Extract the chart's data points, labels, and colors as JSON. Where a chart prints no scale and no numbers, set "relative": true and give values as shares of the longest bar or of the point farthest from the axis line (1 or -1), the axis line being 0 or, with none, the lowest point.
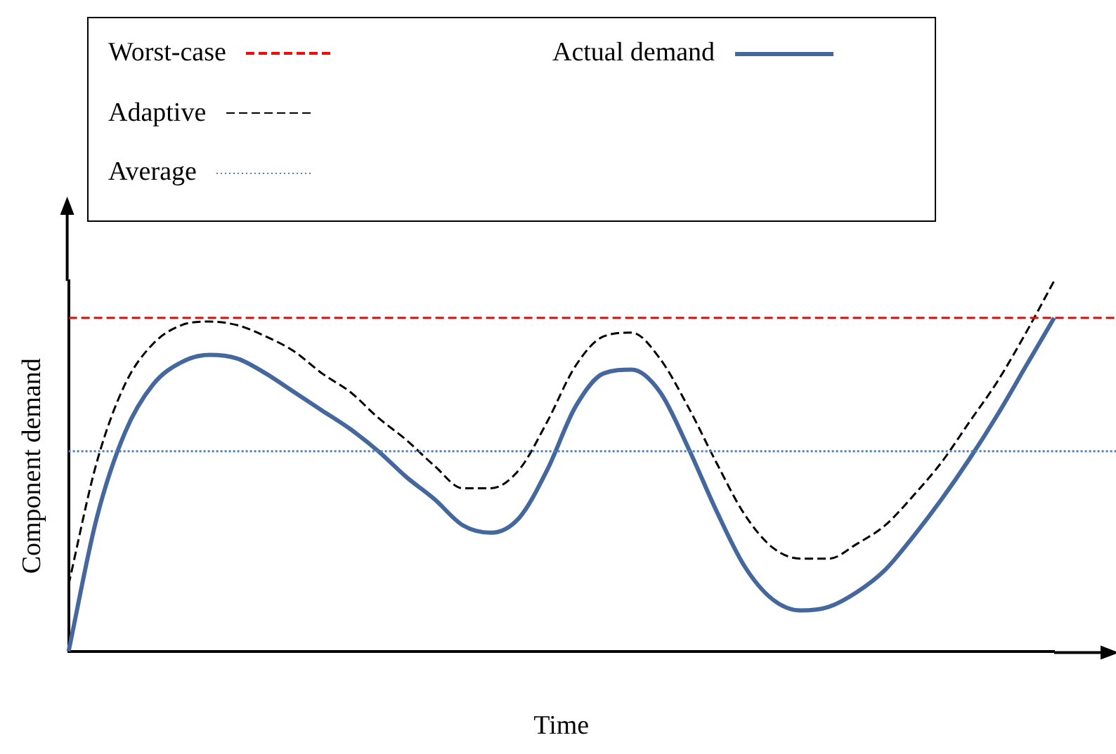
{
  "chart_data": {
    "type": "line",
    "relative": true,
    "xlabel": "Time",
    "ylabel": "Component demand",
    "legend": "top",
    "grid": false,
    "marker": "none",
    "categories": [
      null,
      null,
      null,
      null,
      null,
      null,
      null,
      null,
      null,
      null,
      null,
      null,
      null,
      null,
      null,
      null,
      null,
      null,
      null,
      null,
      null,
      null,
      null,
      null,
      null,
      null,
      null,
      null,
      null,
      null,
      null,
      null,
      null,
      null,
      null,
      null
    ],
    "series": [
      {
        "name": "Adaptive",
        "color": "#000000",
        "line_style": "dashed",
        "values": [
          0.18,
          0.51,
          0.72,
          0.83,
          0.88,
          0.89,
          0.88,
          0.85,
          0.81,
          0.75,
          0.7,
          0.63,
          0.57,
          0.5,
          0.44,
          0.44,
          0.49,
          0.62,
          0.77,
          0.85,
          0.86,
          0.79,
          0.66,
          0.51,
          0.37,
          0.28,
          0.25,
          0.25,
          0.29,
          0.34,
          0.42,
          0.51,
          0.62,
          0.73,
          0.86,
          1
        ]
      },
      {
        "name": "Actual demand",
        "color": "#44679e",
        "line_style": "solid",
        "values": [
          0,
          0.36,
          0.59,
          0.72,
          0.78,
          0.8,
          0.79,
          0.75,
          0.7,
          0.65,
          0.6,
          0.54,
          0.47,
          0.41,
          0.34,
          0.32,
          0.36,
          0.49,
          0.66,
          0.75,
          0.76,
          0.7,
          0.55,
          0.38,
          0.23,
          0.14,
          0.11,
          0.12,
          0.16,
          0.22,
          0.31,
          0.41,
          0.52,
          0.64,
          0.77,
          0.9
        ]
      }
    ],
    "ref_lines": [
      {
        "axis": "y",
        "value": 0.9,
        "label": "Worst-case",
        "color": "#ff0000",
        "line_style": "dashed"
      },
      {
        "axis": "y",
        "value": 0.54,
        "label": "Average",
        "color": "#4f81bd",
        "line_style": "dotted"
      }
    ]
  }
}
